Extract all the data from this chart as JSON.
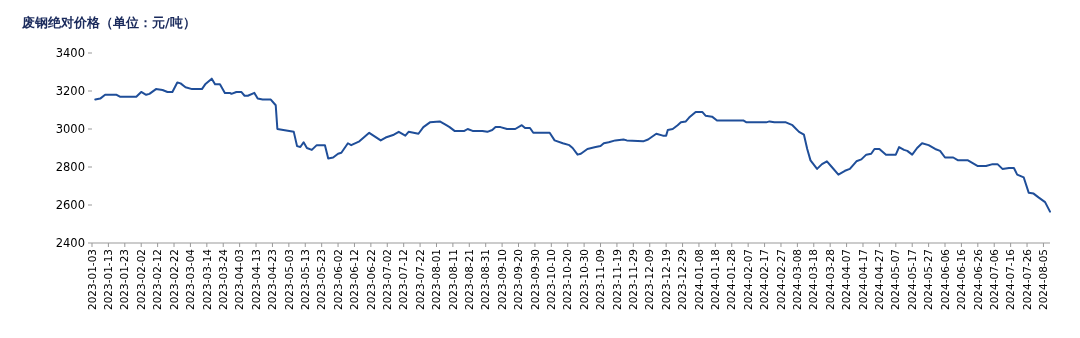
{
  "chart_data": {
    "type": "line",
    "title": "废钢绝对价格（单位：元/吨）",
    "x": [
      "2023-01-05",
      "2023-01-08",
      "2023-01-11",
      "2023-01-18",
      "2023-01-20",
      "2023-01-30",
      "2023-02-02",
      "2023-02-05",
      "2023-02-07",
      "2023-02-11",
      "2023-02-15",
      "2023-02-18",
      "2023-02-21",
      "2023-02-24",
      "2023-02-26",
      "2023-03-01",
      "2023-03-05",
      "2023-03-11",
      "2023-03-13",
      "2023-03-17",
      "2023-03-19",
      "2023-03-22",
      "2023-03-25",
      "2023-03-28",
      "2023-03-29",
      "2023-04-01",
      "2023-04-04",
      "2023-04-06",
      "2023-04-08",
      "2023-04-12",
      "2023-04-14",
      "2023-04-17",
      "2023-04-22",
      "2023-04-25",
      "2023-04-26",
      "2023-05-06",
      "2023-05-08",
      "2023-05-10",
      "2023-05-12",
      "2023-05-14",
      "2023-05-17",
      "2023-05-20",
      "2023-05-25",
      "2023-05-27",
      "2023-05-30",
      "2023-06-02",
      "2023-06-04",
      "2023-06-08",
      "2023-06-10",
      "2023-06-15",
      "2023-06-21",
      "2023-06-28",
      "2023-07-01",
      "2023-07-06",
      "2023-07-09",
      "2023-07-13",
      "2023-07-15",
      "2023-07-21",
      "2023-07-24",
      "2023-07-28",
      "2023-08-03",
      "2023-08-07",
      "2023-08-09",
      "2023-08-12",
      "2023-08-18",
      "2023-08-20",
      "2023-08-23",
      "2023-08-29",
      "2023-09-01",
      "2023-09-04",
      "2023-09-06",
      "2023-09-09",
      "2023-09-13",
      "2023-09-18",
      "2023-09-22",
      "2023-09-24",
      "2023-09-27",
      "2023-09-29",
      "2023-10-09",
      "2023-10-12",
      "2023-10-17",
      "2023-10-21",
      "2023-10-23",
      "2023-10-26",
      "2023-10-28",
      "2023-11-01",
      "2023-11-06",
      "2023-11-09",
      "2023-11-11",
      "2023-11-14",
      "2023-11-18",
      "2023-11-23",
      "2023-11-25",
      "2023-12-05",
      "2023-12-08",
      "2023-12-13",
      "2023-12-17",
      "2023-12-19",
      "2023-12-20",
      "2023-12-23",
      "2023-12-26",
      "2023-12-28",
      "2023-12-31",
      "2024-01-02",
      "2024-01-06",
      "2024-01-10",
      "2024-01-12",
      "2024-01-16",
      "2024-01-19",
      "2024-01-23",
      "2024-01-31",
      "2024-02-04",
      "2024-02-06",
      "2024-02-18",
      "2024-02-20",
      "2024-02-23",
      "2024-03-01",
      "2024-03-05",
      "2024-03-09",
      "2024-03-12",
      "2024-03-14",
      "2024-03-16",
      "2024-03-20",
      "2024-03-23",
      "2024-03-26",
      "2024-03-29",
      "2024-04-02",
      "2024-04-06",
      "2024-04-09",
      "2024-04-13",
      "2024-04-16",
      "2024-04-19",
      "2024-04-22",
      "2024-04-24",
      "2024-04-27",
      "2024-05-01",
      "2024-05-07",
      "2024-05-09",
      "2024-05-12",
      "2024-05-14",
      "2024-05-17",
      "2024-05-20",
      "2024-05-23",
      "2024-05-27",
      "2024-05-31",
      "2024-06-03",
      "2024-06-06",
      "2024-06-11",
      "2024-06-14",
      "2024-06-20",
      "2024-06-26",
      "2024-07-01",
      "2024-07-05",
      "2024-07-08",
      "2024-07-11",
      "2024-07-15",
      "2024-07-18",
      "2024-07-20",
      "2024-07-24",
      "2024-07-27",
      "2024-07-30",
      "2024-08-02",
      "2024-08-06",
      "2024-08-09"
    ],
    "series": [
      {
        "color": "#1f4e99",
        "values": [
          3155,
          3160,
          3180,
          3180,
          3170,
          3170,
          3195,
          3180,
          3185,
          3210,
          3205,
          3195,
          3195,
          3245,
          3240,
          3220,
          3210,
          3210,
          3235,
          3265,
          3235,
          3235,
          3190,
          3190,
          3185,
          3195,
          3195,
          3175,
          3175,
          3190,
          3160,
          3155,
          3155,
          3125,
          3000,
          2985,
          2910,
          2905,
          2930,
          2900,
          2890,
          2915,
          2915,
          2845,
          2850,
          2870,
          2875,
          2925,
          2915,
          2935,
          2980,
          2940,
          2955,
          2970,
          2985,
          2965,
          2985,
          2975,
          3010,
          3035,
          3040,
          3020,
          3010,
          2990,
          2990,
          3000,
          2990,
          2990,
          2985,
          2995,
          3010,
          3010,
          3000,
          3000,
          3020,
          3005,
          3005,
          2980,
          2980,
          2940,
          2925,
          2915,
          2900,
          2865,
          2870,
          2895,
          2905,
          2910,
          2925,
          2930,
          2940,
          2945,
          2940,
          2935,
          2945,
          2975,
          2965,
          2965,
          2995,
          3000,
          3020,
          3035,
          3040,
          3060,
          3090,
          3090,
          3070,
          3065,
          3045,
          3045,
          3045,
          3045,
          3035,
          3035,
          3040,
          3035,
          3035,
          3020,
          2985,
          2970,
          2895,
          2835,
          2790,
          2815,
          2830,
          2800,
          2760,
          2780,
          2790,
          2830,
          2840,
          2865,
          2870,
          2895,
          2895,
          2865,
          2865,
          2905,
          2890,
          2885,
          2865,
          2900,
          2925,
          2915,
          2895,
          2885,
          2850,
          2850,
          2835,
          2835,
          2805,
          2805,
          2815,
          2815,
          2790,
          2795,
          2795,
          2760,
          2745,
          2665,
          2660,
          2640,
          2615,
          2565
        ]
      }
    ],
    "xlim": [
      "2023-01-03",
      "2024-08-09"
    ],
    "xticks": [
      "2023-01-03",
      "2023-01-13",
      "2023-01-23",
      "2023-02-02",
      "2023-02-12",
      "2023-02-22",
      "2023-03-04",
      "2023-03-14",
      "2023-03-24",
      "2023-04-03",
      "2023-04-13",
      "2023-04-23",
      "2023-05-03",
      "2023-05-13",
      "2023-05-23",
      "2023-06-02",
      "2023-06-12",
      "2023-06-22",
      "2023-07-02",
      "2023-07-12",
      "2023-07-22",
      "2023-08-01",
      "2023-08-11",
      "2023-08-21",
      "2023-08-31",
      "2023-09-10",
      "2023-09-20",
      "2023-09-30",
      "2023-10-10",
      "2023-10-20",
      "2023-10-30",
      "2023-11-09",
      "2023-11-19",
      "2023-11-29",
      "2023-12-09",
      "2023-12-19",
      "2023-12-29",
      "2024-01-08",
      "2024-01-18",
      "2024-01-28",
      "2024-02-07",
      "2024-02-17",
      "2024-02-27",
      "2024-03-08",
      "2024-03-18",
      "2024-03-28",
      "2024-04-07",
      "2024-04-17",
      "2024-04-27",
      "2024-05-07",
      "2024-05-17",
      "2024-05-27",
      "2024-06-06",
      "2024-06-16",
      "2024-06-26",
      "2024-07-06",
      "2024-07-16",
      "2024-07-26",
      "2024-08-05"
    ],
    "ylim": [
      2400,
      3400
    ],
    "yticks": [
      2400,
      2600,
      2800,
      3000,
      3200,
      3400
    ],
    "grid": false,
    "marker": "none",
    "line_style": "solid"
  }
}
